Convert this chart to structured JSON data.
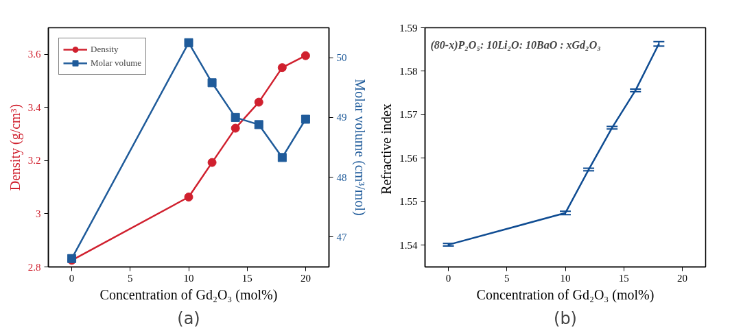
{
  "chart_data": [
    {
      "type": "line",
      "xlabel": "Concentration of Gd₂O₃ (mol%)",
      "ylabel": "Density (g/cm³)",
      "y2label": "Molar volume (cm³/mol)",
      "x": [
        0,
        10,
        12,
        14,
        16,
        18,
        20
      ],
      "series": [
        {
          "name": "Density",
          "color": "#d0202e",
          "marker": "circle",
          "values": [
            2.825,
            3.063,
            3.193,
            3.322,
            3.42,
            3.55,
            3.595
          ]
        },
        {
          "name": "Molar volume",
          "color": "#1f5b9a",
          "marker": "square",
          "axis": "y2",
          "values": [
            46.64,
            50.25,
            49.58,
            49.0,
            48.88,
            48.33,
            48.97
          ]
        }
      ],
      "xlim": [
        -2,
        22
      ],
      "xticks": [
        0,
        5,
        10,
        15,
        20
      ],
      "ylim": [
        2.8,
        3.7
      ],
      "yticks": [
        2.8,
        {
          "value": 3.0,
          "label": "3"
        },
        3.2,
        3.4,
        3.6
      ],
      "y2lim": [
        46.5,
        50.5
      ],
      "y2ticks": [
        47,
        48,
        49,
        50
      ],
      "grid": false,
      "legend": "top left",
      "line_style": "solid",
      "annotations": [
        "(a)"
      ]
    },
    {
      "type": "line",
      "xlabel": "Concentration of Gd₂O₃ (mol%)",
      "ylabel": "Refractive  index",
      "x": [
        0,
        10,
        12,
        14,
        16,
        18
      ],
      "series": [
        {
          "color": "#0f4c92",
          "values": [
            1.5401,
            1.5474,
            1.5574,
            1.567,
            1.5756,
            1.5863
          ],
          "errors": [
            0.0003,
            0.0004,
            0.0003,
            0.0003,
            0.0003,
            0.0005
          ]
        }
      ],
      "xlim": [
        -2,
        22
      ],
      "xticks": [
        0,
        5,
        10,
        15,
        20
      ],
      "ylim": [
        1.535,
        1.59
      ],
      "yticks": [
        1.54,
        1.55,
        1.56,
        1.57,
        1.58,
        1.59
      ],
      "grid": false,
      "legend": false,
      "marker": "none",
      "line_style": "solid",
      "annotations": [
        "(80-x)P₂O₅: 10Li₂O: 10BaO : xGd₂O₃",
        "(b)"
      ]
    }
  ]
}
